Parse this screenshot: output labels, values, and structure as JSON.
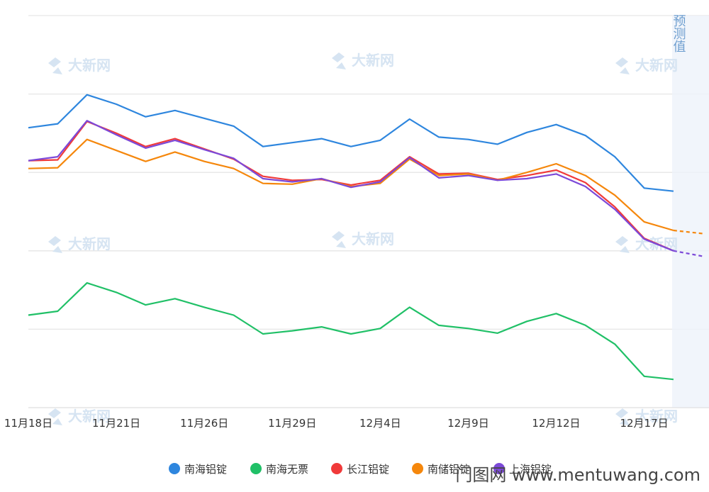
{
  "chart_data": {
    "type": "line",
    "title": "",
    "xlabel": "",
    "ylabel": "",
    "ylim": [
      0,
      5
    ],
    "x_tick_labels": [
      "11月18日",
      "11月21日",
      "11月26日",
      "11月29日",
      "12月4日",
      "12月9日",
      "12月12日",
      "12月17日"
    ],
    "x_tick_index": [
      0,
      3,
      6,
      9,
      12,
      15,
      18,
      21
    ],
    "forecast_label": "预测值",
    "forecast_index": [
      22,
      23
    ],
    "series": [
      {
        "name": "南海铝锭",
        "color": "#2e86de",
        "values": [
          3.57,
          3.62,
          3.99,
          3.87,
          3.71,
          3.79,
          3.69,
          3.59,
          3.33,
          3.38,
          3.43,
          3.33,
          3.41,
          3.68,
          3.45,
          3.42,
          3.36,
          3.51,
          3.61,
          3.47,
          3.2,
          2.8,
          2.76
        ]
      },
      {
        "name": "南海无票",
        "color": "#20c067",
        "values": [
          1.18,
          1.23,
          1.59,
          1.47,
          1.31,
          1.39,
          1.28,
          1.18,
          0.94,
          0.98,
          1.03,
          0.94,
          1.01,
          1.28,
          1.05,
          1.01,
          0.95,
          1.1,
          1.2,
          1.05,
          0.81,
          0.4,
          0.36
        ]
      },
      {
        "name": "长江铝锭",
        "color": "#f03a3a",
        "values": [
          3.15,
          3.16,
          3.65,
          3.5,
          3.33,
          3.43,
          3.3,
          3.17,
          2.95,
          2.9,
          2.91,
          2.84,
          2.9,
          3.2,
          2.98,
          2.99,
          2.91,
          2.96,
          3.03,
          2.87,
          2.56,
          2.16,
          2.0
        ]
      },
      {
        "name": "南储铝锭",
        "color": "#f5870c",
        "values": [
          3.05,
          3.06,
          3.42,
          3.28,
          3.14,
          3.26,
          3.14,
          3.05,
          2.86,
          2.85,
          2.92,
          2.82,
          2.86,
          3.17,
          2.96,
          2.98,
          2.9,
          3.0,
          3.11,
          2.96,
          2.71,
          2.37,
          2.26,
          2.22
        ]
      },
      {
        "name": "上海铝锭",
        "color": "#7c49d8",
        "values": [
          3.15,
          3.2,
          3.66,
          3.48,
          3.31,
          3.41,
          3.29,
          3.18,
          2.92,
          2.88,
          2.92,
          2.81,
          2.88,
          3.19,
          2.93,
          2.96,
          2.9,
          2.92,
          2.98,
          2.82,
          2.53,
          2.15,
          2.0,
          1.93
        ]
      }
    ]
  },
  "watermark": {
    "text": "大新网"
  },
  "footer": {
    "site": "门图网 www.mentuwang.com"
  }
}
